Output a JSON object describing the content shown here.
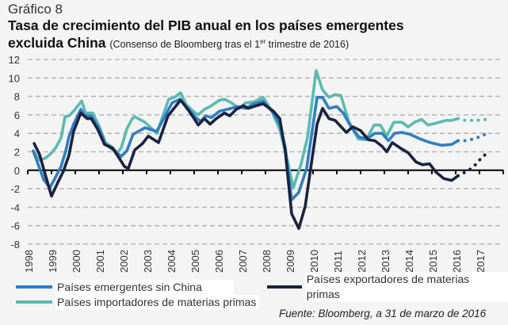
{
  "figure_label": "Gráfico 8",
  "title_line1": "Tasa de crecimiento del PIB anual en los países emergentes",
  "title_line2": "excluida China",
  "subtitle_pre": "(Consenso de Bloomberg tras el 1",
  "subtitle_sup": "er",
  "subtitle_post": " trimestre de 2016)",
  "source": "Fuente: Bloomberg, a 31 de marzo de 2016",
  "chart_data": {
    "type": "line",
    "title": "Tasa de crecimiento del PIB anual en los países emergentes excluida China",
    "xlabel": "",
    "ylabel": "",
    "xlim": [
      1998,
      2018
    ],
    "ylim": [
      -8,
      12
    ],
    "yticks": [
      "12",
      "10",
      "8",
      "6",
      "4",
      "2",
      "0",
      "-2",
      "-4",
      "-6",
      "-8"
    ],
    "xticks": [
      "1998",
      "1999",
      "2000",
      "2001",
      "2002",
      "2003",
      "2004",
      "2005",
      "2006",
      "2007",
      "2008",
      "2009",
      "2010",
      "2011",
      "2012",
      "2013",
      "2014",
      "2015",
      "2016",
      "2017"
    ],
    "grid": "horizontal dashed",
    "legend_position": "bottom",
    "series": [
      {
        "name": "Países emergentes sin China",
        "color": "#2f7fc1",
        "points": [
          [
            1998.23,
            2.1
          ],
          [
            1998.43,
            0.7
          ],
          [
            1998.67,
            -1.0
          ],
          [
            1998.93,
            -1.9
          ],
          [
            1999.1,
            -1.1
          ],
          [
            1999.4,
            0.4
          ],
          [
            1999.6,
            2.1
          ],
          [
            1999.73,
            3.6
          ],
          [
            1999.93,
            5.0
          ],
          [
            2000.23,
            6.6
          ],
          [
            2000.4,
            5.9
          ],
          [
            2000.67,
            5.9
          ],
          [
            2001.0,
            4.5
          ],
          [
            2001.27,
            2.8
          ],
          [
            2001.6,
            2.2
          ],
          [
            2001.93,
            1.5
          ],
          [
            2002.17,
            2.1
          ],
          [
            2002.43,
            3.9
          ],
          [
            2002.93,
            4.6
          ],
          [
            2003.43,
            4.2
          ],
          [
            2004.07,
            7.3
          ],
          [
            2004.4,
            7.7
          ],
          [
            2004.73,
            6.7
          ],
          [
            2005.07,
            5.7
          ],
          [
            2005.27,
            5.3
          ],
          [
            2005.5,
            5.9
          ],
          [
            2005.73,
            5.7
          ],
          [
            2006.07,
            6.4
          ],
          [
            2006.4,
            6.6
          ],
          [
            2006.83,
            6.9
          ],
          [
            2007.17,
            6.7
          ],
          [
            2007.43,
            7.1
          ],
          [
            2007.9,
            7.5
          ],
          [
            2008.33,
            6.2
          ],
          [
            2008.6,
            5.0
          ],
          [
            2008.83,
            2.5
          ],
          [
            2009.1,
            -3.2
          ],
          [
            2009.4,
            -2.4
          ],
          [
            2009.73,
            0.2
          ],
          [
            2010.17,
            7.9
          ],
          [
            2010.4,
            7.9
          ],
          [
            2010.67,
            6.7
          ],
          [
            2011.0,
            6.9
          ],
          [
            2011.27,
            6.2
          ],
          [
            2011.6,
            4.7
          ],
          [
            2011.93,
            3.6
          ],
          [
            2012.27,
            3.4
          ],
          [
            2012.6,
            4.0
          ],
          [
            2012.9,
            4.0
          ],
          [
            2013.17,
            3.2
          ],
          [
            2013.43,
            4.0
          ],
          [
            2013.73,
            4.1
          ],
          [
            2014.07,
            3.9
          ],
          [
            2014.5,
            3.4
          ],
          [
            2014.93,
            3.0
          ],
          [
            2015.4,
            2.7
          ],
          [
            2015.83,
            2.8
          ],
          [
            2016.1,
            3.2
          ]
        ],
        "forecast": [
          [
            2016.1,
            3.2
          ],
          [
            2016.4,
            3.2
          ],
          [
            2016.77,
            3.4
          ],
          [
            2017.07,
            3.7
          ],
          [
            2017.33,
            4.0
          ]
        ]
      },
      {
        "name": "Países exportadores de materias primas",
        "color": "#1b2340",
        "points": [
          [
            1998.27,
            2.9
          ],
          [
            1998.5,
            1.7
          ],
          [
            1998.73,
            -0.4
          ],
          [
            1999.0,
            -2.8
          ],
          [
            1999.27,
            -1.3
          ],
          [
            1999.5,
            -0.1
          ],
          [
            1999.73,
            1.6
          ],
          [
            1999.93,
            4.2
          ],
          [
            2000.23,
            6.2
          ],
          [
            2000.5,
            5.6
          ],
          [
            2000.67,
            5.6
          ],
          [
            2000.93,
            4.5
          ],
          [
            2001.23,
            2.8
          ],
          [
            2001.57,
            2.4
          ],
          [
            2001.9,
            1.1
          ],
          [
            2002.07,
            0.4
          ],
          [
            2002.23,
            0.2
          ],
          [
            2002.5,
            2.2
          ],
          [
            2002.83,
            2.9
          ],
          [
            2003.07,
            3.7
          ],
          [
            2003.5,
            3.0
          ],
          [
            2003.9,
            5.9
          ],
          [
            2004.43,
            7.6
          ],
          [
            2004.73,
            6.6
          ],
          [
            2005.0,
            5.6
          ],
          [
            2005.17,
            4.9
          ],
          [
            2005.43,
            5.6
          ],
          [
            2005.67,
            5.0
          ],
          [
            2005.93,
            5.6
          ],
          [
            2006.27,
            6.2
          ],
          [
            2006.5,
            5.9
          ],
          [
            2006.77,
            6.6
          ],
          [
            2007.07,
            7.0
          ],
          [
            2007.27,
            6.7
          ],
          [
            2007.5,
            6.9
          ],
          [
            2007.9,
            7.2
          ],
          [
            2008.33,
            6.4
          ],
          [
            2008.6,
            5.6
          ],
          [
            2008.83,
            2.1
          ],
          [
            2009.1,
            -4.7
          ],
          [
            2009.4,
            -6.3
          ],
          [
            2009.67,
            -3.9
          ],
          [
            2009.9,
            0.2
          ],
          [
            2010.17,
            5.0
          ],
          [
            2010.4,
            6.7
          ],
          [
            2010.67,
            5.6
          ],
          [
            2010.93,
            5.4
          ],
          [
            2011.4,
            4.1
          ],
          [
            2011.67,
            4.7
          ],
          [
            2012.0,
            4.3
          ],
          [
            2012.33,
            3.3
          ],
          [
            2012.6,
            3.2
          ],
          [
            2012.9,
            2.6
          ],
          [
            2013.1,
            2.0
          ],
          [
            2013.33,
            3.0
          ],
          [
            2013.67,
            2.4
          ],
          [
            2014.0,
            1.9
          ],
          [
            2014.33,
            0.9
          ],
          [
            2014.6,
            0.6
          ],
          [
            2014.9,
            0.7
          ],
          [
            2015.17,
            -0.2
          ],
          [
            2015.5,
            -0.9
          ],
          [
            2015.83,
            -1.1
          ],
          [
            2016.1,
            -0.6
          ]
        ],
        "forecast": [
          [
            2016.1,
            -0.6
          ],
          [
            2016.33,
            -0.3
          ],
          [
            2016.6,
            0.1
          ],
          [
            2016.83,
            0.6
          ],
          [
            2017.07,
            1.3
          ],
          [
            2017.33,
            1.9
          ]
        ]
      },
      {
        "name": "Países importadores de materias primas",
        "color": "#5bbab0",
        "points": [
          [
            1998.23,
            2.1
          ],
          [
            1998.5,
            1.1
          ],
          [
            1998.73,
            1.3
          ],
          [
            1998.93,
            1.7
          ],
          [
            1999.17,
            2.4
          ],
          [
            1999.4,
            3.5
          ],
          [
            1999.57,
            5.8
          ],
          [
            1999.73,
            5.9
          ],
          [
            1999.93,
            6.4
          ],
          [
            2000.27,
            7.5
          ],
          [
            2000.43,
            6.2
          ],
          [
            2000.73,
            6.2
          ],
          [
            2001.0,
            4.8
          ],
          [
            2001.27,
            3.0
          ],
          [
            2001.5,
            2.6
          ],
          [
            2001.77,
            1.9
          ],
          [
            2001.93,
            2.4
          ],
          [
            2002.17,
            4.5
          ],
          [
            2002.4,
            5.6
          ],
          [
            2002.5,
            5.8
          ],
          [
            2002.93,
            5.2
          ],
          [
            2003.43,
            4.0
          ],
          [
            2003.93,
            7.7
          ],
          [
            2004.17,
            7.9
          ],
          [
            2004.43,
            8.4
          ],
          [
            2004.67,
            7.1
          ],
          [
            2005.0,
            6.3
          ],
          [
            2005.17,
            6.0
          ],
          [
            2005.43,
            6.6
          ],
          [
            2005.67,
            6.9
          ],
          [
            2006.07,
            7.6
          ],
          [
            2006.27,
            7.7
          ],
          [
            2006.57,
            7.3
          ],
          [
            2006.9,
            6.7
          ],
          [
            2007.17,
            7.3
          ],
          [
            2007.5,
            7.4
          ],
          [
            2007.9,
            7.9
          ],
          [
            2008.27,
            6.4
          ],
          [
            2008.6,
            4.4
          ],
          [
            2008.83,
            2.1
          ],
          [
            2009.17,
            -1.9
          ],
          [
            2009.5,
            0.7
          ],
          [
            2009.77,
            3.6
          ],
          [
            2010.13,
            10.8
          ],
          [
            2010.4,
            8.7
          ],
          [
            2010.67,
            7.9
          ],
          [
            2010.93,
            8.2
          ],
          [
            2011.17,
            8.1
          ],
          [
            2011.5,
            5.3
          ],
          [
            2011.9,
            3.4
          ],
          [
            2012.23,
            3.3
          ],
          [
            2012.57,
            4.9
          ],
          [
            2012.83,
            4.9
          ],
          [
            2013.1,
            3.7
          ],
          [
            2013.4,
            5.2
          ],
          [
            2013.73,
            5.2
          ],
          [
            2014.0,
            4.7
          ],
          [
            2014.27,
            5.2
          ],
          [
            2014.57,
            5.5
          ],
          [
            2014.83,
            4.9
          ],
          [
            2015.17,
            5.1
          ],
          [
            2015.6,
            5.4
          ],
          [
            2015.83,
            5.4
          ],
          [
            2016.1,
            5.6
          ]
        ],
        "forecast": [
          [
            2016.1,
            5.6
          ],
          [
            2016.4,
            5.4
          ],
          [
            2016.83,
            5.4
          ],
          [
            2017.33,
            5.5
          ]
        ]
      }
    ]
  },
  "legend": [
    {
      "label": "Países emergentes sin China",
      "color": "#2f7fc1"
    },
    {
      "label": "Países exportadores de materias primas",
      "color": "#1b2340"
    },
    {
      "label": "Países importadores de materias primas",
      "color": "#5bbab0"
    }
  ]
}
